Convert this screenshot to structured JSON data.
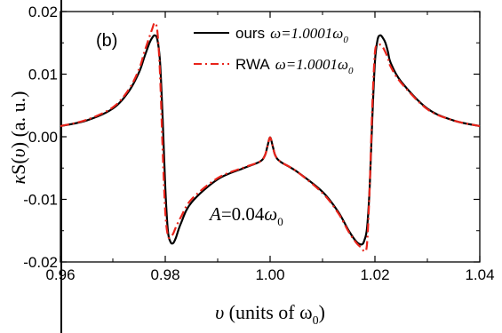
{
  "chart_data": {
    "type": "line",
    "panel_label": "(b)",
    "xlabel": {
      "symbol": "υ",
      "text": " (units of ω",
      "sub": "0",
      "close": ")"
    },
    "ylabel": {
      "kappa": "κ",
      "S": "S(",
      "nu": "υ",
      "rest": ") (a. u.)"
    },
    "xlim": [
      0.96,
      1.04
    ],
    "ylim": [
      -0.02,
      0.02
    ],
    "xticks": [
      "0.96",
      "0.98",
      "1.00",
      "1.02",
      "1.04"
    ],
    "yticks": [
      "-0.02",
      "-0.01",
      "0.00",
      "0.01",
      "0.02"
    ],
    "grid": false,
    "legend_position": "top-right",
    "annotation": {
      "A": "A",
      "eq": "=0.04",
      "omega": "ω",
      "sub": "0"
    },
    "series": [
      {
        "name": "ours",
        "legend_param": "ω=1.0001ω",
        "legend_sub": "0",
        "color": "#000000",
        "style": "solid",
        "x": [
          0.96,
          0.965,
          0.97,
          0.973,
          0.975,
          0.976,
          0.977,
          0.9775,
          0.978,
          0.9785,
          0.979,
          0.9795,
          0.98,
          0.9805,
          0.981,
          0.9815,
          0.982,
          0.983,
          0.985,
          0.99,
          0.995,
          0.998,
          0.999,
          0.9995,
          1.0,
          1.0005,
          1.001,
          1.002,
          1.005,
          1.01,
          1.013,
          1.015,
          1.0165,
          1.0175,
          1.018,
          1.0185,
          1.019,
          1.0195,
          1.02,
          1.0205,
          1.021,
          1.0215,
          1.022,
          1.0225,
          1.023,
          1.025,
          1.03,
          1.035,
          1.04
        ],
        "y": [
          0.0017,
          0.0026,
          0.0045,
          0.0072,
          0.0103,
          0.0127,
          0.015,
          0.0158,
          0.0162,
          0.0155,
          0.012,
          0.003,
          -0.008,
          -0.015,
          -0.0168,
          -0.017,
          -0.0162,
          -0.0138,
          -0.0105,
          -0.0068,
          -0.005,
          -0.004,
          -0.003,
          -0.0015,
          -0.0001,
          -0.0015,
          -0.003,
          -0.004,
          -0.0055,
          -0.0088,
          -0.012,
          -0.015,
          -0.0168,
          -0.0172,
          -0.0165,
          -0.0145,
          -0.008,
          0.003,
          0.012,
          0.0155,
          0.0162,
          0.0158,
          0.015,
          0.0135,
          0.0118,
          0.0088,
          0.0045,
          0.0026,
          0.0017
        ]
      },
      {
        "name": "RWA",
        "legend_param": "ω=1.0001ω",
        "legend_sub": "0",
        "color": "#e8231a",
        "style": "dash-dot",
        "x": [
          0.96,
          0.965,
          0.97,
          0.973,
          0.975,
          0.976,
          0.977,
          0.9775,
          0.978,
          0.9785,
          0.979,
          0.9795,
          0.98,
          0.9805,
          0.981,
          0.9815,
          0.982,
          0.983,
          0.985,
          0.99,
          0.995,
          0.998,
          0.999,
          0.9995,
          1.0,
          1.0005,
          1.001,
          1.002,
          1.005,
          1.01,
          1.013,
          1.015,
          1.0165,
          1.0175,
          1.018,
          1.0185,
          1.019,
          1.0195,
          1.02,
          1.0205,
          1.021,
          1.0215,
          1.022,
          1.0225,
          1.023,
          1.025,
          1.03,
          1.035,
          1.04
        ],
        "y": [
          0.0017,
          0.0027,
          0.0047,
          0.0075,
          0.0108,
          0.0135,
          0.016,
          0.0172,
          0.0182,
          0.0168,
          0.01,
          -0.002,
          -0.012,
          -0.0158,
          -0.016,
          -0.0155,
          -0.0145,
          -0.0128,
          -0.01,
          -0.0066,
          -0.0049,
          -0.004,
          -0.003,
          -0.0015,
          -0.0001,
          -0.0015,
          -0.003,
          -0.004,
          -0.0055,
          -0.009,
          -0.0122,
          -0.0152,
          -0.017,
          -0.0178,
          -0.0183,
          -0.017,
          -0.008,
          0.005,
          0.0135,
          0.0145,
          0.0147,
          0.0143,
          0.0135,
          0.0125,
          0.0112,
          0.0086,
          0.0044,
          0.0026,
          0.0017
        ]
      }
    ]
  }
}
